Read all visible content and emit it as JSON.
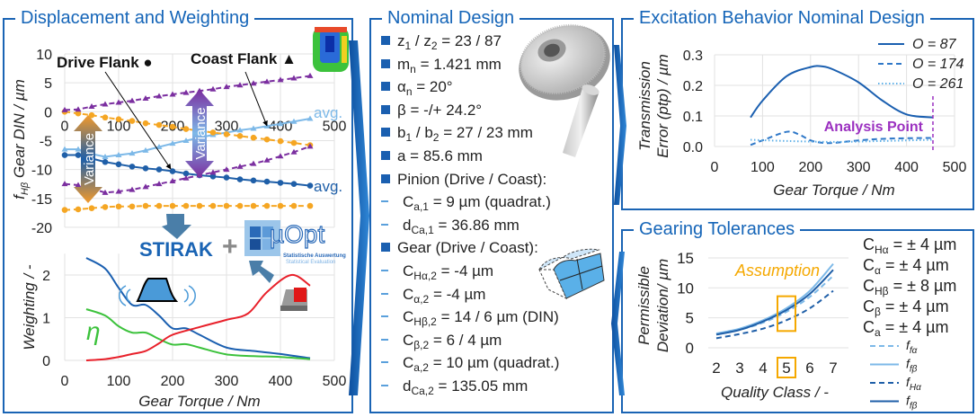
{
  "panels": {
    "displacement": {
      "title": "Displacement and Weighting"
    },
    "nominal": {
      "title": "Nominal Design",
      "items": [
        {
          "kind": "bullet",
          "parts": [
            {
              "t": "z"
            },
            {
              "t": "1",
              "sub": true
            },
            {
              "t": " / z"
            },
            {
              "t": "2",
              "sub": true
            },
            {
              "t": " = 23 / 87"
            }
          ]
        },
        {
          "kind": "bullet",
          "parts": [
            {
              "t": "m"
            },
            {
              "t": "n",
              "sub": true
            },
            {
              "t": " = 1.421 mm"
            }
          ]
        },
        {
          "kind": "bullet",
          "parts": [
            {
              "t": "α"
            },
            {
              "t": "n",
              "sub": true
            },
            {
              "t": " = 20°"
            }
          ]
        },
        {
          "kind": "bullet",
          "parts": [
            {
              "t": "β = -/+ 24.2°"
            }
          ]
        },
        {
          "kind": "bullet",
          "parts": [
            {
              "t": "b"
            },
            {
              "t": "1",
              "sub": true
            },
            {
              "t": " / b"
            },
            {
              "t": "2",
              "sub": true
            },
            {
              "t": " = 27 / 23 mm"
            }
          ]
        },
        {
          "kind": "bullet",
          "parts": [
            {
              "t": "a = 85.6 mm"
            }
          ]
        },
        {
          "kind": "bullet",
          "parts": [
            {
              "t": "Pinion (Drive / Coast):"
            }
          ]
        },
        {
          "kind": "dash",
          "parts": [
            {
              "t": "C"
            },
            {
              "t": "a,1",
              "sub": true
            },
            {
              "t": " = 9 µm (quadrat.)"
            }
          ]
        },
        {
          "kind": "dash",
          "parts": [
            {
              "t": "d"
            },
            {
              "t": "Ca,1",
              "sub": true
            },
            {
              "t": " = 36.86 mm"
            }
          ]
        },
        {
          "kind": "bullet",
          "parts": [
            {
              "t": "Gear (Drive / Coast):"
            }
          ]
        },
        {
          "kind": "dash",
          "parts": [
            {
              "t": "C"
            },
            {
              "t": "Hα,2",
              "sub": true
            },
            {
              "t": " = -4 µm"
            }
          ]
        },
        {
          "kind": "dash",
          "parts": [
            {
              "t": "C"
            },
            {
              "t": "α,2",
              "sub": true
            },
            {
              "t": " = -4 µm"
            }
          ]
        },
        {
          "kind": "dash",
          "parts": [
            {
              "t": "C"
            },
            {
              "t": "Hβ,2",
              "sub": true
            },
            {
              "t": " = 14 / 6 µm (DIN)"
            }
          ]
        },
        {
          "kind": "dash",
          "parts": [
            {
              "t": "C"
            },
            {
              "t": "β,2",
              "sub": true
            },
            {
              "t": " = 6 / 4 µm"
            }
          ]
        },
        {
          "kind": "dash",
          "parts": [
            {
              "t": "C"
            },
            {
              "t": "a,2",
              "sub": true
            },
            {
              "t": " = 10 µm (quadrat.)"
            }
          ]
        },
        {
          "kind": "dash",
          "parts": [
            {
              "t": "d"
            },
            {
              "t": "Ca,2",
              "sub": true
            },
            {
              "t": " = 135.05 mm"
            }
          ]
        }
      ]
    },
    "excitation": {
      "title": "Excitation Behavior Nominal Design"
    },
    "tolerances": {
      "title": "Gearing Tolerances",
      "list": [
        {
          "sym": "C",
          "sub": "Hα",
          "value": " = ± 4 µm"
        },
        {
          "sym": "C",
          "sub": "α",
          "value": " = ± 4 µm"
        },
        {
          "sym": "C",
          "sub": "Hβ",
          "value": " = ± 8 µm"
        },
        {
          "sym": "C",
          "sub": "β",
          "value": " = ± 4 µm"
        },
        {
          "sym": "C",
          "sub": "a",
          "value": " = ± 4 µm"
        }
      ]
    }
  },
  "logos": {
    "stirak": "STIRAK",
    "uopt": "µOpt",
    "uopt_sub1": "Statistische Auswertung",
    "uopt_sub2": "Statistical Evaluation"
  },
  "colors": {
    "frame": "#1a64b4",
    "drive_avg": "#1f5fa8",
    "coast_avg": "#7db9e8",
    "drive_var": "#f5a623",
    "coast_var": "#7b2fa0",
    "red": "#e8202a",
    "green": "#3cc23c",
    "analysis": "#9b30c0",
    "assumption": "#f5a800"
  },
  "chart_data": [
    {
      "id": "displacement",
      "type": "line",
      "ylabel": {
        "main": "f",
        "sub": "Hβ",
        "rest": " Gear  DIN / µm"
      },
      "ylim": [
        -20,
        10
      ],
      "xlim": [
        0,
        500
      ],
      "yticks": [
        10,
        5,
        0,
        -5,
        -10,
        -15,
        -20
      ],
      "xticks": [
        0,
        100,
        200,
        300,
        400,
        500
      ],
      "grid": true,
      "annotations": {
        "drive": "Drive Flank ●",
        "coast": "Coast Flank ▲",
        "avg": "avg.",
        "variance": "Variance"
      },
      "x": [
        0,
        25,
        50,
        75,
        100,
        125,
        150,
        175,
        200,
        225,
        250,
        275,
        300,
        325,
        350,
        375,
        400,
        425,
        455
      ],
      "series": [
        {
          "name": "avg.",
          "flank": "Drive Flank",
          "color": "#1f5fa8",
          "style": "solid",
          "marker": "circle",
          "values": [
            -7.5,
            -7.5,
            -8.1,
            -8.7,
            -9.1,
            -9.5,
            -9.8,
            -10.0,
            -10.3,
            -10.7,
            -11.0,
            -11.2,
            -11.4,
            -11.7,
            -11.9,
            -12.1,
            -12.3,
            -12.5,
            -12.8
          ]
        },
        {
          "name": "avg.",
          "flank": "Coast Flank",
          "color": "#7db9e8",
          "style": "solid",
          "marker": "triangle",
          "values": [
            -6.5,
            -6.5,
            -7.3,
            -7.8,
            -7.5,
            -7.2,
            -6.7,
            -6.1,
            -5.5,
            -5.0,
            -4.5,
            -4.0,
            -3.6,
            -3.2,
            -2.9,
            -2.5,
            -2.1,
            -1.7,
            -1.2
          ]
        },
        {
          "flank": "Drive Flank",
          "color": "#f5a623",
          "style": "dashed",
          "marker": "circle",
          "values": [
            0,
            -0.3,
            -0.6,
            -1.0,
            -1.3,
            -1.6,
            -2.0,
            -2.3,
            -2.6,
            -3.0,
            -3.3,
            -3.6,
            -3.9,
            -4.2,
            -4.5,
            -4.8,
            -5.1,
            -5.4,
            -5.8
          ]
        },
        {
          "flank": "Drive Flank",
          "color": "#f5a623",
          "style": "dashed",
          "marker": "circle",
          "values": [
            -17,
            -16.9,
            -16.7,
            -16.5,
            -16.4,
            -16.4,
            -16.3,
            -16.3,
            -16.3,
            -16.3,
            -16.3,
            -16.3,
            -16.3,
            -16.3,
            -16.3,
            -16.3,
            -16.3,
            -16.3,
            -16.3
          ]
        },
        {
          "flank": "Coast Flank",
          "color": "#7b2fa0",
          "style": "dashed",
          "marker": "triangle",
          "values": [
            0.3,
            0.4,
            0.9,
            1.3,
            1.6,
            1.9,
            2.3,
            2.7,
            3.0,
            3.3,
            3.6,
            3.9,
            4.3,
            4.6,
            4.9,
            5.2,
            5.5,
            5.8,
            6.2
          ]
        },
        {
          "flank": "Coast Flank",
          "color": "#7b2fa0",
          "style": "dashed",
          "marker": "triangle",
          "values": [
            -12.5,
            -12.7,
            -13.3,
            -14.0,
            -13.8,
            -13.5,
            -13.0,
            -12.5,
            -12.0,
            -11.5,
            -11.0,
            -10.5,
            -10.0,
            -9.5,
            -9.0,
            -8.4,
            -7.7,
            -7.0,
            -6.0
          ]
        }
      ]
    },
    {
      "id": "weighting",
      "type": "line",
      "xlabel": "Gear Torque / Nm",
      "ylabel": "Weighting / -",
      "ylim": [
        0,
        2.5
      ],
      "xlim": [
        0,
        500
      ],
      "yticks": [
        0,
        1,
        2
      ],
      "xticks": [
        0,
        100,
        200,
        300,
        400,
        500
      ],
      "grid": true,
      "annotations": {
        "eta": "η"
      },
      "series": [
        {
          "color": "#1a5fb0",
          "x": [
            40,
            75,
            100,
            125,
            150,
            175,
            200,
            225,
            250,
            300,
            350,
            400,
            455
          ],
          "values": [
            2.4,
            2.15,
            1.7,
            1.3,
            1.3,
            1.05,
            0.75,
            0.75,
            0.6,
            0.3,
            0.22,
            0.15,
            0.05
          ]
        },
        {
          "name": "η",
          "color": "#3cc23c",
          "x": [
            40,
            75,
            100,
            125,
            150,
            175,
            200,
            225,
            250,
            300,
            350,
            400,
            455
          ],
          "values": [
            1.2,
            1.05,
            0.8,
            0.65,
            0.65,
            0.5,
            0.37,
            0.38,
            0.3,
            0.14,
            0.1,
            0.08,
            0.03
          ]
        },
        {
          "color": "#e8202a",
          "x": [
            40,
            75,
            100,
            125,
            150,
            175,
            200,
            250,
            300,
            340,
            375,
            420,
            455
          ],
          "values": [
            0,
            0.03,
            0.08,
            0.15,
            0.22,
            0.4,
            0.6,
            0.78,
            0.95,
            1.1,
            1.6,
            2.0,
            1.75
          ]
        }
      ]
    },
    {
      "id": "excitation",
      "type": "line",
      "xlabel": "Gear Torque / Nm",
      "ylabel": [
        "Transmission",
        "Error (ptp) / µm"
      ],
      "ylim": [
        0,
        0.3
      ],
      "xlim": [
        0,
        500
      ],
      "yticks": [
        "0.0",
        "0.1",
        "0.2",
        "0.3"
      ],
      "xticks": [
        0,
        100,
        200,
        300,
        400,
        500
      ],
      "grid": true,
      "legend": "top-right",
      "annotations": {
        "analysis_point": "Analysis Point",
        "analysis_x": 455
      },
      "series": [
        {
          "name": "O = 87",
          "color": "#1a5fb0",
          "style": "solid",
          "x": [
            75,
            100,
            150,
            200,
            225,
            250,
            300,
            350,
            400,
            455
          ],
          "values": [
            0.095,
            0.15,
            0.23,
            0.26,
            0.262,
            0.25,
            0.21,
            0.15,
            0.105,
            0.095
          ]
        },
        {
          "name": "O = 174",
          "color": "#2f78c8",
          "style": "dashed",
          "x": [
            75,
            100,
            150,
            175,
            200,
            225,
            250,
            300,
            350,
            400,
            455
          ],
          "values": [
            0.005,
            0.02,
            0.048,
            0.04,
            0.02,
            0.012,
            0.012,
            0.02,
            0.025,
            0.027,
            0.028
          ]
        },
        {
          "name": "O = 261",
          "color": "#5fb0e8",
          "style": "dotted",
          "x": [
            75,
            150,
            250,
            350,
            455
          ],
          "values": [
            0.022,
            0.018,
            0.015,
            0.018,
            0.022
          ]
        }
      ]
    },
    {
      "id": "tolerances",
      "type": "line",
      "xlabel": "Quality Class / -",
      "ylabel": [
        "Permissible",
        "Deviation/ µm"
      ],
      "ylim": [
        0,
        15
      ],
      "yticks": [
        0,
        5,
        10,
        15
      ],
      "categories": [
        2,
        3,
        4,
        5,
        6,
        7
      ],
      "grid": true,
      "legend": "right",
      "annotations": {
        "assumption": "Assumption",
        "assumption_class": 5
      },
      "series": [
        {
          "name": {
            "main": "f",
            "sub": "fα"
          },
          "color": "#7db9e8",
          "style": "dashed",
          "values": [
            2.2,
            3.0,
            4.2,
            6.0,
            8.5,
            12.0
          ]
        },
        {
          "name": {
            "main": "f",
            "sub": "fβ"
          },
          "color": "#7db9e8",
          "style": "solid",
          "values": [
            2.4,
            3.2,
            4.6,
            6.6,
            9.5,
            14.0
          ]
        },
        {
          "name": {
            "main": "f",
            "sub": "Hα"
          },
          "color": "#1f5fa8",
          "style": "dashed",
          "values": [
            1.6,
            2.3,
            3.2,
            4.6,
            6.6,
            9.5
          ]
        },
        {
          "name": {
            "main": "f",
            "sub": "fβ"
          },
          "color": "#1f5fa8",
          "style": "solid",
          "values": [
            2.2,
            3.0,
            4.4,
            6.3,
            9.0,
            13.0
          ]
        }
      ]
    }
  ]
}
